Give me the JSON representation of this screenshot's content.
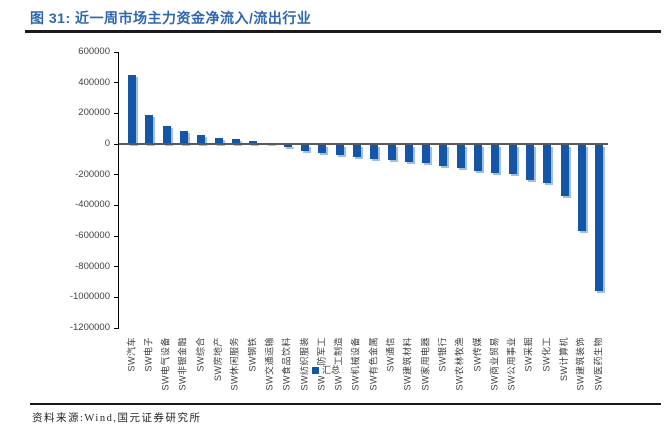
{
  "header": {
    "figure_label": "图 31:",
    "title": "近一周市场主力资金净流入/流出行业"
  },
  "footer": {
    "source": "资料来源:Wind,国元证券研究所"
  },
  "colors": {
    "title": "#2F66AD",
    "bar": "#1456A5",
    "bar_shadow": "#9FBFE0",
    "zero_line": "#595959",
    "axis": "#000000",
    "rule": "#19191F",
    "tick_label": "#3F3F3F"
  },
  "chart_data": {
    "type": "bar",
    "title": "近一周市场主力资金净流入/流出行业",
    "categories": [
      "SW汽车",
      "SW电子",
      "SW电气设备",
      "SW非银金融",
      "SW综合",
      "SW房地产",
      "SW休闲服务",
      "SW钢铁",
      "SW交通运输",
      "SW食品饮料",
      "SW纺织服装",
      "SW国防军工",
      "SW轻工制造",
      "SW机械设备",
      "SW有色金属",
      "SW通信",
      "SW建筑材料",
      "SW家用电器",
      "SW银行",
      "SW农林牧渔",
      "SW传媒",
      "SW商业贸易",
      "SW公用事业",
      "SW采掘",
      "SW化工",
      "SW计算机",
      "SW建筑装饰",
      "SW医药生物"
    ],
    "series": [
      {
        "name": "汇总",
        "values": [
          450000,
          190000,
          115000,
          85000,
          60000,
          42000,
          30000,
          20000,
          5000,
          -10000,
          -40000,
          -55000,
          -65000,
          -75000,
          -90000,
          -100000,
          -110000,
          -120000,
          -135000,
          -150000,
          -170000,
          -180000,
          -190000,
          -225000,
          -250000,
          -330000,
          -560000,
          -950000
        ]
      }
    ],
    "xlabel": "",
    "ylabel": "",
    "ylim": [
      -1200000,
      600000
    ],
    "yticks": [
      600000,
      400000,
      200000,
      0,
      -200000,
      -400000,
      -600000,
      -800000,
      -1000000,
      -1200000
    ],
    "grid": false,
    "legend_position": "bottom",
    "x_label_rotation": -90
  }
}
